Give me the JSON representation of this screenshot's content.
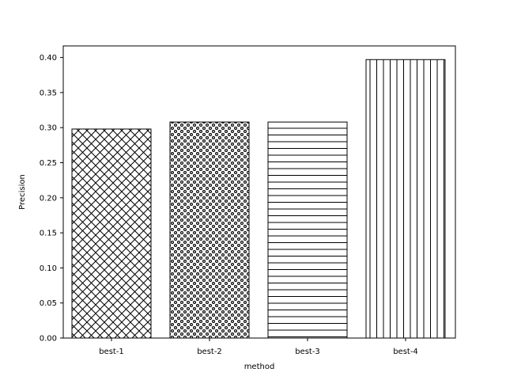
{
  "chart_data": {
    "type": "bar",
    "categories": [
      "best-1",
      "best-2",
      "best-3",
      "best-4"
    ],
    "values": [
      0.298,
      0.308,
      0.308,
      0.397
    ],
    "patterns": [
      "crosshatch",
      "dots",
      "horizontal-lines",
      "vertical-lines"
    ],
    "title": "",
    "xlabel": "method",
    "ylabel": "Precision",
    "ylim": [
      0,
      0.4165
    ],
    "yticks": [
      0.0,
      0.05,
      0.1,
      0.15,
      0.2,
      0.25,
      0.3,
      0.35,
      0.4
    ],
    "ytick_labels": [
      "0.00",
      "0.05",
      "0.10",
      "0.15",
      "0.20",
      "0.25",
      "0.30",
      "0.35",
      "0.40"
    ],
    "grid": false,
    "bar_fill": "#ffffff",
    "bar_edge": "#000000"
  }
}
